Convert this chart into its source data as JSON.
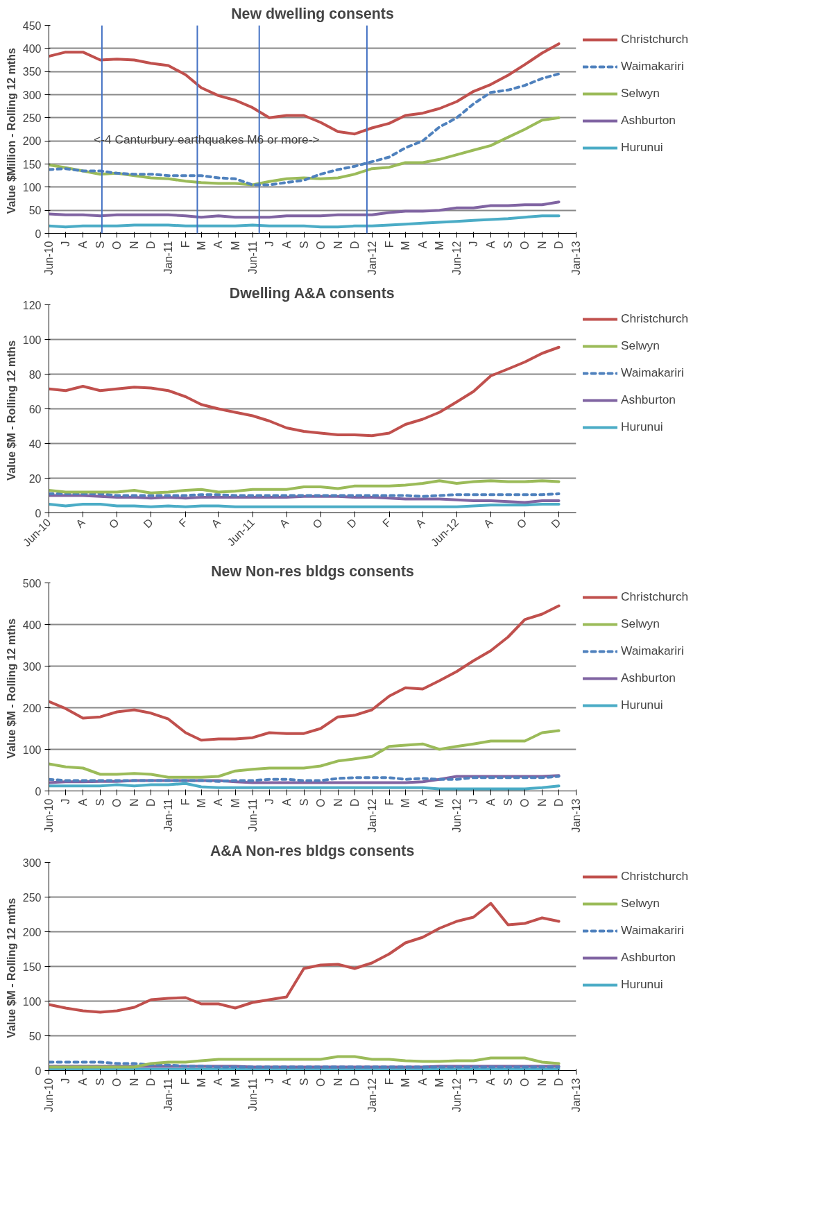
{
  "chart_data": [
    {
      "type": "line",
      "title": "New dwelling consents",
      "ylabel": "Value $Million -  Rolling 12 mths",
      "grid": "y",
      "legend": "right",
      "x": [
        "2010-06",
        "2010-07",
        "2010-08",
        "2010-09",
        "2010-10",
        "2010-11",
        "2010-12",
        "2011-01",
        "2011-02",
        "2011-03",
        "2011-04",
        "2011-05",
        "2011-06",
        "2011-07",
        "2011-08",
        "2011-09",
        "2011-10",
        "2011-11",
        "2011-12",
        "2012-01",
        "2012-02",
        "2012-03",
        "2012-04",
        "2012-05",
        "2012-06",
        "2012-07",
        "2012-08",
        "2012-09",
        "2012-10",
        "2012-11",
        "2012-12"
      ],
      "xlim": [
        "2010-06",
        "2013-01"
      ],
      "xticks": [
        {
          "value": "2010-06",
          "label": "Jun-10"
        },
        {
          "value": "2010-07",
          "label": "J"
        },
        {
          "value": "2010-08",
          "label": "A"
        },
        {
          "value": "2010-09",
          "label": "S"
        },
        {
          "value": "2010-10",
          "label": "O"
        },
        {
          "value": "2010-11",
          "label": "N"
        },
        {
          "value": "2010-12",
          "label": "D"
        },
        {
          "value": "2011-01",
          "label": "Jan-11"
        },
        {
          "value": "2011-02",
          "label": "F"
        },
        {
          "value": "2011-03",
          "label": "M"
        },
        {
          "value": "2011-04",
          "label": "A"
        },
        {
          "value": "2011-05",
          "label": "M"
        },
        {
          "value": "2011-06",
          "label": "Jun-11"
        },
        {
          "value": "2011-07",
          "label": "J"
        },
        {
          "value": "2011-08",
          "label": "A"
        },
        {
          "value": "2011-09",
          "label": "S"
        },
        {
          "value": "2011-10",
          "label": "O"
        },
        {
          "value": "2011-11",
          "label": "N"
        },
        {
          "value": "2011-12",
          "label": "D"
        },
        {
          "value": "2012-01",
          "label": "Jan-12"
        },
        {
          "value": "2012-02",
          "label": "F"
        },
        {
          "value": "2012-03",
          "label": "M"
        },
        {
          "value": "2012-04",
          "label": "A"
        },
        {
          "value": "2012-05",
          "label": "M"
        },
        {
          "value": "2012-06",
          "label": "Jun-12"
        },
        {
          "value": "2012-07",
          "label": "J"
        },
        {
          "value": "2012-08",
          "label": "A"
        },
        {
          "value": "2012-09",
          "label": "S"
        },
        {
          "value": "2012-10",
          "label": "O"
        },
        {
          "value": "2012-11",
          "label": "N"
        },
        {
          "value": "2012-12",
          "label": "D"
        },
        {
          "value": "2013-01",
          "label": "Jan-13"
        }
      ],
      "ylim": [
        0,
        450
      ],
      "yticks": [
        0,
        50,
        100,
        150,
        200,
        250,
        300,
        350,
        400,
        450
      ],
      "annotations": [
        "<-4 Canturbury earthquakes  M6 or more->"
      ],
      "ref_lines": [
        {
          "axis": "x",
          "value": "2010-09-04",
          "color": "#4472c4"
        },
        {
          "axis": "x",
          "value": "2011-02-22",
          "color": "#4472c4"
        },
        {
          "axis": "x",
          "value": "2011-06-13",
          "color": "#4472c4"
        },
        {
          "axis": "x",
          "value": "2011-12-23",
          "color": "#4472c4"
        }
      ],
      "series": [
        {
          "name": "Christchurch",
          "color": "#c0504d",
          "values": [
            383,
            392,
            392,
            375,
            377,
            375,
            368,
            363,
            343,
            315,
            298,
            288,
            272,
            250,
            255,
            255,
            240,
            220,
            215,
            228,
            238,
            255,
            260,
            270,
            285,
            307,
            322,
            342,
            365,
            390,
            410
          ]
        },
        {
          "name": "Waimakariri",
          "color": "#4f81bd",
          "line_style": "dashed",
          "values": [
            138,
            140,
            135,
            135,
            130,
            128,
            128,
            125,
            125,
            125,
            120,
            118,
            105,
            105,
            110,
            115,
            128,
            138,
            145,
            155,
            165,
            185,
            200,
            230,
            250,
            280,
            305,
            310,
            320,
            335,
            345
          ]
        },
        {
          "name": "Selwyn",
          "color": "#9bbb59",
          "values": [
            148,
            142,
            135,
            128,
            130,
            125,
            120,
            118,
            113,
            110,
            108,
            108,
            105,
            112,
            118,
            120,
            118,
            120,
            128,
            140,
            143,
            153,
            153,
            160,
            170,
            180,
            190,
            208,
            225,
            245,
            250
          ]
        },
        {
          "name": "Ashburton",
          "color": "#8064a2",
          "values": [
            42,
            40,
            40,
            38,
            40,
            40,
            40,
            40,
            38,
            35,
            38,
            35,
            35,
            35,
            38,
            38,
            38,
            40,
            40,
            40,
            45,
            48,
            48,
            50,
            55,
            55,
            60,
            60,
            62,
            62,
            68
          ]
        },
        {
          "name": "Hurunui",
          "color": "#4bacc6",
          "values": [
            16,
            14,
            16,
            16,
            16,
            18,
            18,
            18,
            16,
            16,
            16,
            16,
            18,
            16,
            16,
            16,
            14,
            14,
            16,
            16,
            18,
            20,
            22,
            24,
            26,
            28,
            30,
            32,
            35,
            38,
            38
          ]
        }
      ]
    },
    {
      "type": "line",
      "title": "Dwelling A&A consents",
      "ylabel": "Value $M -  Rolling 12 mths",
      "grid": "y",
      "legend": "right",
      "x": [
        "2010-06",
        "2010-07",
        "2010-08",
        "2010-09",
        "2010-10",
        "2010-11",
        "2010-12",
        "2011-01",
        "2011-02",
        "2011-03",
        "2011-04",
        "2011-05",
        "2011-06",
        "2011-07",
        "2011-08",
        "2011-09",
        "2011-10",
        "2011-11",
        "2011-12",
        "2012-01",
        "2012-02",
        "2012-03",
        "2012-04",
        "2012-05",
        "2012-06",
        "2012-07",
        "2012-08",
        "2012-09",
        "2012-10",
        "2012-11",
        "2012-12"
      ],
      "xlim": [
        "2010-06",
        "2013-01"
      ],
      "xticks": [
        {
          "value": "2010-06",
          "label": "Jun-10"
        },
        {
          "value": "2010-08",
          "label": "A"
        },
        {
          "value": "2010-10",
          "label": "O"
        },
        {
          "value": "2010-12",
          "label": "D"
        },
        {
          "value": "2011-02",
          "label": "F"
        },
        {
          "value": "2011-04",
          "label": "A"
        },
        {
          "value": "2011-06",
          "label": "Jun-11"
        },
        {
          "value": "2011-08",
          "label": "A"
        },
        {
          "value": "2011-10",
          "label": "O"
        },
        {
          "value": "2011-12",
          "label": "D"
        },
        {
          "value": "2012-02",
          "label": "F"
        },
        {
          "value": "2012-04",
          "label": "A"
        },
        {
          "value": "2012-06",
          "label": "Jun-12"
        },
        {
          "value": "2012-08",
          "label": "A"
        },
        {
          "value": "2012-10",
          "label": "O"
        },
        {
          "value": "2012-12",
          "label": "D"
        }
      ],
      "ylim": [
        0,
        120
      ],
      "yticks": [
        0,
        20,
        40,
        60,
        80,
        100,
        120
      ],
      "series": [
        {
          "name": "Christchurch",
          "color": "#c0504d",
          "values": [
            71.5,
            70.5,
            73,
            70.5,
            71.5,
            72.5,
            72,
            70.5,
            67,
            62.5,
            60,
            58,
            56,
            53,
            49,
            47,
            46,
            45,
            45,
            44.5,
            46,
            51,
            54,
            58,
            64,
            70,
            79,
            83,
            87,
            92,
            95.5
          ]
        },
        {
          "name": "Selwyn",
          "color": "#9bbb59",
          "values": [
            13,
            12,
            12,
            12,
            12,
            13,
            11.5,
            12,
            13,
            13.5,
            12,
            12.5,
            13.5,
            13.5,
            13.5,
            15,
            15,
            14,
            15.5,
            15.5,
            15.5,
            16,
            17,
            18.5,
            17,
            18,
            18.5,
            18,
            18,
            18.5,
            18
          ]
        },
        {
          "name": "Waimakariri",
          "color": "#4f81bd",
          "line_style": "dashed",
          "values": [
            11,
            11,
            11,
            11,
            10,
            10,
            10,
            10,
            10,
            10.5,
            10.5,
            10,
            10,
            10,
            10,
            10,
            10,
            10,
            10,
            10,
            10,
            10,
            9.5,
            10,
            10.5,
            10.5,
            10.5,
            10.5,
            10.5,
            10.5,
            11
          ]
        },
        {
          "name": "Ashburton",
          "color": "#8064a2",
          "values": [
            10,
            10,
            10,
            9.5,
            9,
            9,
            8.5,
            9,
            8.5,
            9,
            9,
            9,
            9,
            9,
            9,
            9.5,
            9.5,
            9.5,
            9,
            9,
            8.5,
            8,
            8,
            8,
            7.5,
            7,
            7,
            6.5,
            6,
            7,
            7
          ]
        },
        {
          "name": "Hurunui",
          "color": "#4bacc6",
          "values": [
            5,
            4,
            5,
            5,
            4,
            4,
            3.5,
            4,
            3.5,
            4,
            4,
            3.5,
            3.5,
            3.5,
            3.5,
            3.5,
            3.5,
            3.5,
            3.5,
            3.5,
            3.5,
            3.5,
            3.5,
            3.5,
            3.5,
            4,
            4.5,
            4.5,
            4.5,
            5,
            5
          ]
        }
      ]
    },
    {
      "type": "line",
      "title": "New Non-res bldgs consents",
      "ylabel": "Value $M -  Rolling 12 mths",
      "grid": "y",
      "legend": "right",
      "x": [
        "2010-06",
        "2010-07",
        "2010-08",
        "2010-09",
        "2010-10",
        "2010-11",
        "2010-12",
        "2011-01",
        "2011-02",
        "2011-03",
        "2011-04",
        "2011-05",
        "2011-06",
        "2011-07",
        "2011-08",
        "2011-09",
        "2011-10",
        "2011-11",
        "2011-12",
        "2012-01",
        "2012-02",
        "2012-03",
        "2012-04",
        "2012-05",
        "2012-06",
        "2012-07",
        "2012-08",
        "2012-09",
        "2012-10",
        "2012-11",
        "2012-12"
      ],
      "xlim": [
        "2010-06",
        "2013-01"
      ],
      "xticks": [
        {
          "value": "2010-06",
          "label": "Jun-10"
        },
        {
          "value": "2010-07",
          "label": "J"
        },
        {
          "value": "2010-08",
          "label": "A"
        },
        {
          "value": "2010-09",
          "label": "S"
        },
        {
          "value": "2010-10",
          "label": "O"
        },
        {
          "value": "2010-11",
          "label": "N"
        },
        {
          "value": "2010-12",
          "label": "D"
        },
        {
          "value": "2011-01",
          "label": "Jan-11"
        },
        {
          "value": "2011-02",
          "label": "F"
        },
        {
          "value": "2011-03",
          "label": "M"
        },
        {
          "value": "2011-04",
          "label": "A"
        },
        {
          "value": "2011-05",
          "label": "M"
        },
        {
          "value": "2011-06",
          "label": "Jun-11"
        },
        {
          "value": "2011-07",
          "label": "J"
        },
        {
          "value": "2011-08",
          "label": "A"
        },
        {
          "value": "2011-09",
          "label": "S"
        },
        {
          "value": "2011-10",
          "label": "O"
        },
        {
          "value": "2011-11",
          "label": "N"
        },
        {
          "value": "2011-12",
          "label": "D"
        },
        {
          "value": "2012-01",
          "label": "Jan-12"
        },
        {
          "value": "2012-02",
          "label": "F"
        },
        {
          "value": "2012-03",
          "label": "M"
        },
        {
          "value": "2012-04",
          "label": "A"
        },
        {
          "value": "2012-05",
          "label": "M"
        },
        {
          "value": "2012-06",
          "label": "Jun-12"
        },
        {
          "value": "2012-07",
          "label": "J"
        },
        {
          "value": "2012-08",
          "label": "A"
        },
        {
          "value": "2012-09",
          "label": "S"
        },
        {
          "value": "2012-10",
          "label": "O"
        },
        {
          "value": "2012-11",
          "label": "N"
        },
        {
          "value": "2012-12",
          "label": "D"
        },
        {
          "value": "2013-01",
          "label": "Jan-13"
        }
      ],
      "ylim": [
        0,
        500
      ],
      "yticks": [
        0,
        100,
        200,
        300,
        400,
        500
      ],
      "series": [
        {
          "name": "Christchurch",
          "color": "#c0504d",
          "values": [
            215,
            198,
            175,
            178,
            190,
            195,
            187,
            173,
            140,
            122,
            125,
            125,
            128,
            140,
            138,
            138,
            150,
            178,
            182,
            195,
            228,
            248,
            245,
            265,
            287,
            313,
            337,
            370,
            412,
            425,
            445
          ]
        },
        {
          "name": "Selwyn",
          "color": "#9bbb59",
          "values": [
            65,
            58,
            55,
            40,
            40,
            42,
            40,
            33,
            33,
            33,
            35,
            48,
            52,
            55,
            55,
            55,
            60,
            72,
            77,
            83,
            107,
            110,
            113,
            100,
            107,
            113,
            120,
            120,
            120,
            140,
            145
          ]
        },
        {
          "name": "Waimakariri",
          "color": "#4f81bd",
          "line_style": "dashed",
          "values": [
            28,
            25,
            25,
            25,
            25,
            25,
            25,
            25,
            25,
            25,
            23,
            25,
            25,
            28,
            28,
            25,
            25,
            30,
            32,
            32,
            32,
            28,
            30,
            28,
            28,
            32,
            32,
            32,
            32,
            32,
            35
          ]
        },
        {
          "name": "Ashburton",
          "color": "#8064a2",
          "values": [
            20,
            22,
            22,
            23,
            23,
            25,
            25,
            25,
            25,
            25,
            25,
            22,
            20,
            20,
            20,
            20,
            20,
            20,
            20,
            20,
            20,
            20,
            22,
            28,
            35,
            35,
            35,
            35,
            35,
            35,
            37
          ]
        },
        {
          "name": "Hurunui",
          "color": "#4bacc6",
          "values": [
            12,
            12,
            12,
            12,
            15,
            12,
            15,
            15,
            18,
            10,
            8,
            8,
            8,
            8,
            8,
            8,
            8,
            8,
            8,
            8,
            8,
            8,
            8,
            5,
            5,
            5,
            5,
            5,
            5,
            8,
            12
          ]
        }
      ]
    },
    {
      "type": "line",
      "title": "A&A Non-res bldgs consents",
      "ylabel": "Value $M -  Rolling 12 mths",
      "grid": "y",
      "legend": "right",
      "x": [
        "2010-06",
        "2010-07",
        "2010-08",
        "2010-09",
        "2010-10",
        "2010-11",
        "2010-12",
        "2011-01",
        "2011-02",
        "2011-03",
        "2011-04",
        "2011-05",
        "2011-06",
        "2011-07",
        "2011-08",
        "2011-09",
        "2011-10",
        "2011-11",
        "2011-12",
        "2012-01",
        "2012-02",
        "2012-03",
        "2012-04",
        "2012-05",
        "2012-06",
        "2012-07",
        "2012-08",
        "2012-09",
        "2012-10",
        "2012-11",
        "2012-12"
      ],
      "xlim": [
        "2010-06",
        "2013-01"
      ],
      "xticks": [
        {
          "value": "2010-06",
          "label": "Jun-10"
        },
        {
          "value": "2010-07",
          "label": "J"
        },
        {
          "value": "2010-08",
          "label": "A"
        },
        {
          "value": "2010-09",
          "label": "S"
        },
        {
          "value": "2010-10",
          "label": "O"
        },
        {
          "value": "2010-11",
          "label": "N"
        },
        {
          "value": "2010-12",
          "label": "D"
        },
        {
          "value": "2011-01",
          "label": "Jan-11"
        },
        {
          "value": "2011-02",
          "label": "F"
        },
        {
          "value": "2011-03",
          "label": "M"
        },
        {
          "value": "2011-04",
          "label": "A"
        },
        {
          "value": "2011-05",
          "label": "M"
        },
        {
          "value": "2011-06",
          "label": "Jun-11"
        },
        {
          "value": "2011-07",
          "label": "J"
        },
        {
          "value": "2011-08",
          "label": "A"
        },
        {
          "value": "2011-09",
          "label": "S"
        },
        {
          "value": "2011-10",
          "label": "O"
        },
        {
          "value": "2011-11",
          "label": "N"
        },
        {
          "value": "2011-12",
          "label": "D"
        },
        {
          "value": "2012-01",
          "label": "Jan-12"
        },
        {
          "value": "2012-02",
          "label": "F"
        },
        {
          "value": "2012-03",
          "label": "M"
        },
        {
          "value": "2012-04",
          "label": "A"
        },
        {
          "value": "2012-05",
          "label": "M"
        },
        {
          "value": "2012-06",
          "label": "Jun-12"
        },
        {
          "value": "2012-07",
          "label": "J"
        },
        {
          "value": "2012-08",
          "label": "A"
        },
        {
          "value": "2012-09",
          "label": "S"
        },
        {
          "value": "2012-10",
          "label": "O"
        },
        {
          "value": "2012-11",
          "label": "N"
        },
        {
          "value": "2012-12",
          "label": "D"
        },
        {
          "value": "2013-01",
          "label": "Jan-13"
        }
      ],
      "ylim": [
        0,
        300
      ],
      "yticks": [
        0,
        50,
        100,
        150,
        200,
        250,
        300
      ],
      "series": [
        {
          "name": "Christchurch",
          "color": "#c0504d",
          "values": [
            95,
            90,
            86,
            84,
            86,
            91,
            102,
            104,
            105,
            96,
            96,
            90,
            98,
            102,
            106,
            147,
            152,
            153,
            147,
            155,
            168,
            184,
            192,
            205,
            215,
            221,
            241,
            210,
            212,
            220,
            215
          ]
        },
        {
          "name": "Selwyn",
          "color": "#9bbb59",
          "values": [
            5,
            5,
            5,
            5,
            5,
            5,
            10,
            12,
            12,
            14,
            16,
            16,
            16,
            16,
            16,
            16,
            16,
            20,
            20,
            16,
            16,
            14,
            13,
            13,
            14,
            14,
            18,
            18,
            18,
            12,
            10
          ]
        },
        {
          "name": "Waimakariri",
          "color": "#4f81bd",
          "line_style": "dashed",
          "values": [
            12,
            12,
            12,
            12,
            10,
            10,
            8,
            8,
            6,
            6,
            5,
            5,
            5,
            5,
            5,
            5,
            5,
            5,
            5,
            5,
            5,
            5,
            5,
            5,
            5,
            5,
            5,
            5,
            5,
            5,
            5
          ]
        },
        {
          "name": "Ashburton",
          "color": "#8064a2",
          "values": [
            6,
            6,
            6,
            6,
            6,
            6,
            6,
            6,
            6,
            6,
            6,
            6,
            5,
            5,
            5,
            5,
            5,
            5,
            5,
            5,
            5,
            5,
            5,
            6,
            6,
            6,
            6,
            6,
            6,
            6,
            6
          ]
        },
        {
          "name": "Hurunui",
          "color": "#4bacc6",
          "values": [
            2,
            2,
            2,
            2,
            2,
            2,
            2,
            2,
            2,
            2,
            2,
            2,
            2,
            2,
            2,
            2,
            2,
            2,
            2,
            2,
            2,
            2,
            2,
            2,
            2,
            2,
            2,
            2,
            2,
            2,
            2
          ]
        }
      ]
    }
  ]
}
